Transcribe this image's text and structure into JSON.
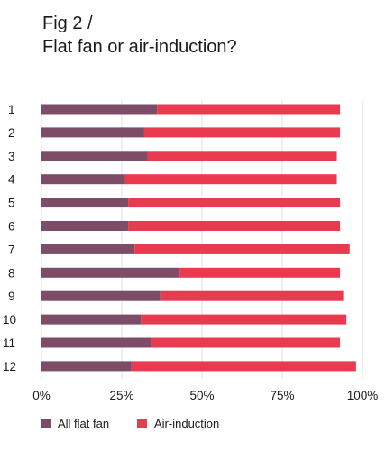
{
  "fig_label": "Fig 2 /",
  "title": "Flat fan or air-induction?",
  "colors": {
    "flat_fan": "#7d4d67",
    "air_induction": "#e93a50",
    "grid": "#e2e2e2"
  },
  "chart_data": {
    "type": "bar",
    "orientation": "horizontal",
    "stacked": true,
    "title": "Flat fan or air-induction?",
    "categories": [
      "1",
      "2",
      "3",
      "4",
      "5",
      "6",
      "7",
      "8",
      "9",
      "10",
      "11",
      "12"
    ],
    "series": [
      {
        "name": "All flat fan",
        "values": [
          36,
          32,
          33,
          26,
          27,
          27,
          29,
          43,
          37,
          31,
          34,
          28
        ]
      },
      {
        "name": "Air-induction",
        "values": [
          57,
          61,
          59,
          66,
          66,
          66,
          67,
          50,
          57,
          64,
          59,
          70
        ]
      }
    ],
    "xlim": [
      0,
      100
    ],
    "xticks": [
      "0%",
      "25%",
      "50%",
      "75%",
      "100%"
    ],
    "grid": "vertical",
    "legend_position": "bottom-left"
  }
}
